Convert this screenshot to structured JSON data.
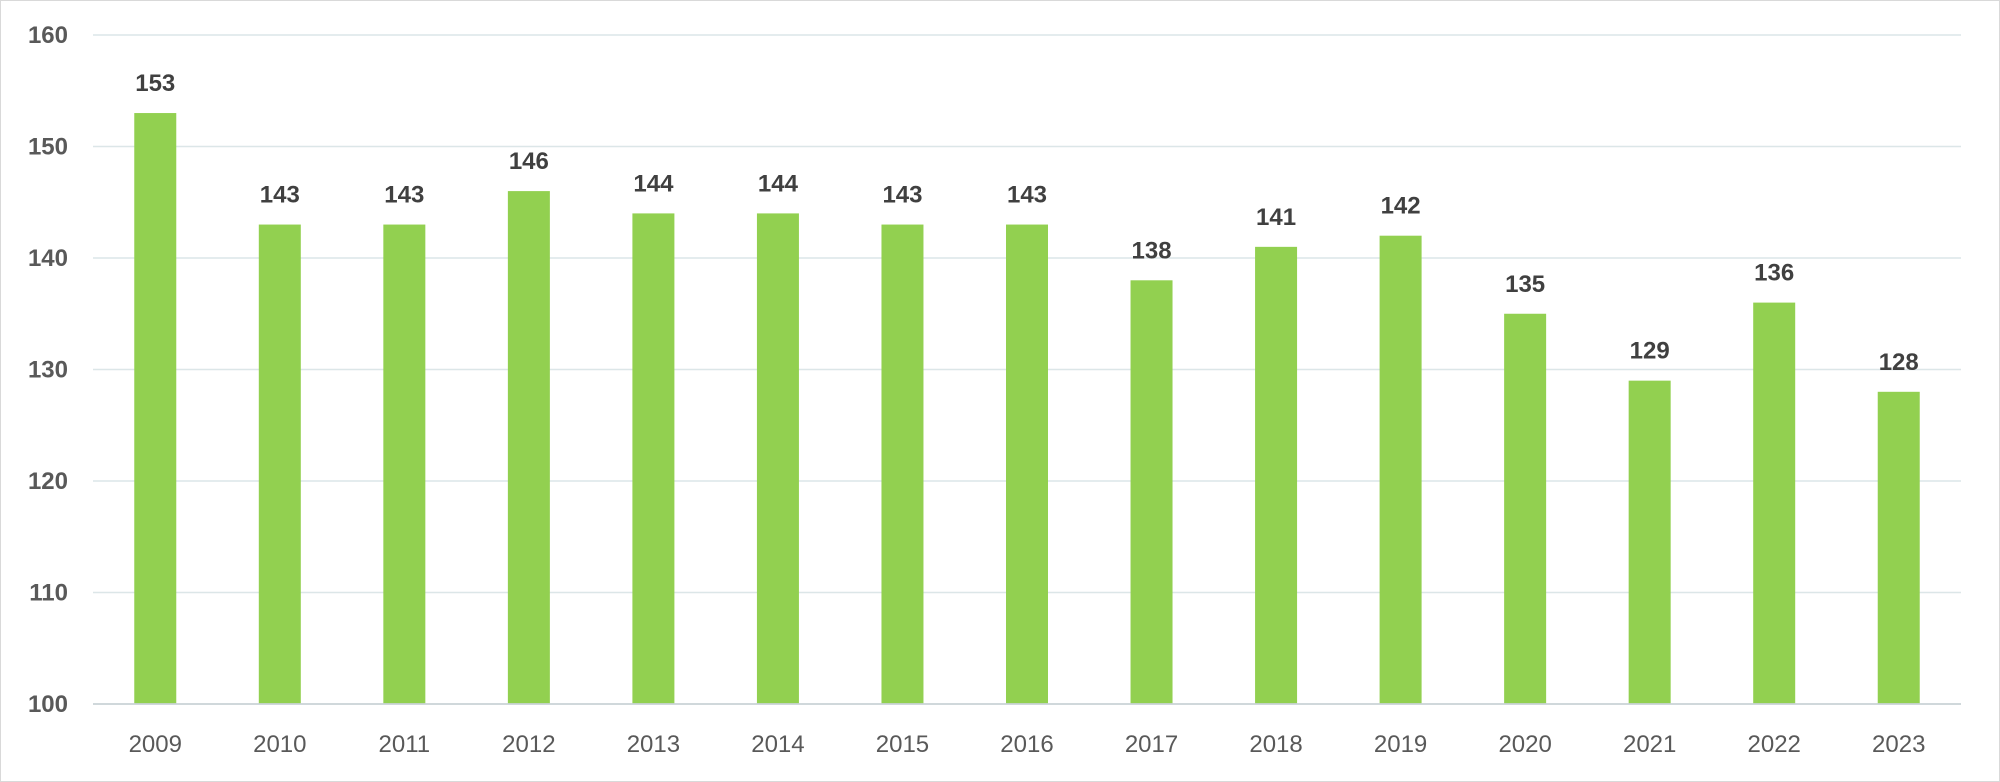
{
  "chart_data": {
    "type": "bar",
    "categories": [
      "2009",
      "2010",
      "2011",
      "2012",
      "2013",
      "2014",
      "2015",
      "2016",
      "2017",
      "2018",
      "2019",
      "2020",
      "2021",
      "2022",
      "2023"
    ],
    "values": [
      153,
      143,
      143,
      146,
      144,
      144,
      143,
      143,
      138,
      141,
      142,
      135,
      129,
      136,
      128
    ],
    "data_labels": [
      "153",
      "143",
      "143",
      "146",
      "144",
      "144",
      "143",
      "143",
      "138",
      "141",
      "142",
      "135",
      "129",
      "136",
      "128"
    ],
    "y_ticks": [
      100,
      110,
      120,
      130,
      140,
      150,
      160
    ],
    "ylim": [
      100,
      160
    ],
    "title": "",
    "xlabel": "",
    "ylabel": "",
    "grid": true,
    "legend": "none",
    "colors": {
      "bar": "#92d050",
      "grid": "#dce6e8",
      "axis": "#c9d3d6",
      "tick_text": "#595959",
      "label_text": "#404040"
    }
  }
}
